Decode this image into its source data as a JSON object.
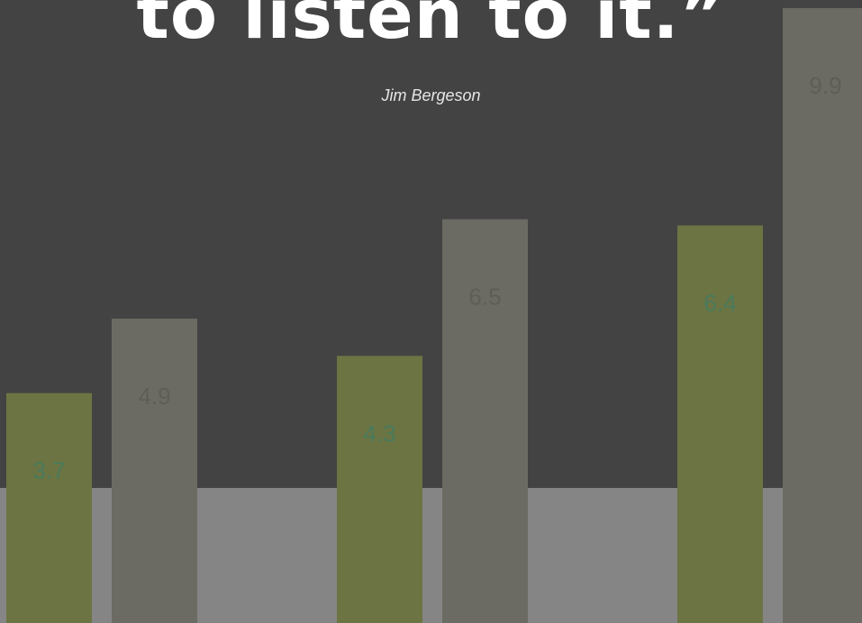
{
  "quote": {
    "text": "to listen to it.”",
    "author": "Jim Bergeson"
  },
  "colors": {
    "background": "#434343",
    "floor": "#858585",
    "olive_bar": "#6c7443",
    "gray_bar": "#6b6b63",
    "olive_label": "#4a7a5c",
    "gray_label": "#5e5e58"
  },
  "chart_data": {
    "type": "bar",
    "title": "",
    "xlabel": "",
    "ylabel": "",
    "ylim": [
      0,
      10
    ],
    "grid": false,
    "series": [
      {
        "color": "#6c7443",
        "values": [
          3.7,
          4.3,
          6.4
        ]
      },
      {
        "color": "#6b6b63",
        "values": [
          4.9,
          6.5,
          9.9
        ]
      }
    ],
    "data_labels": [
      [
        "3.7",
        "4.3",
        "6.4"
      ],
      [
        "4.9",
        "6.5",
        "9.9"
      ]
    ]
  }
}
